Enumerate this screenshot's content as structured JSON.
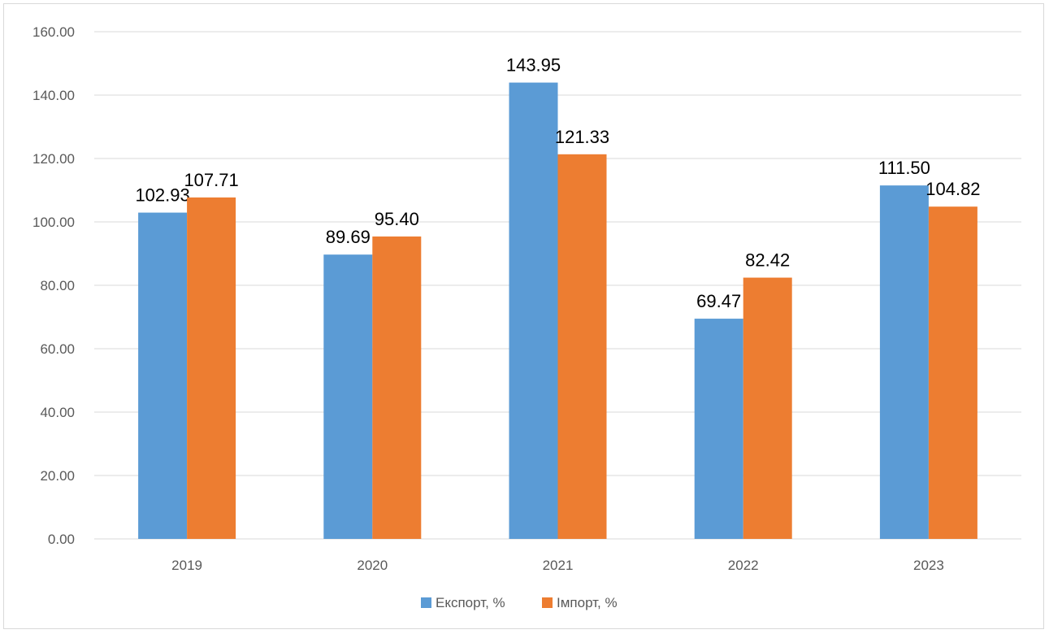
{
  "chart_data": {
    "type": "bar",
    "categories": [
      "2019",
      "2020",
      "2021",
      "2022",
      "2023"
    ],
    "series": [
      {
        "name": "Експорт, %",
        "color": "#5b9bd5",
        "values": [
          102.93,
          89.69,
          143.95,
          69.47,
          111.5
        ],
        "labels": [
          "102.93",
          "89.69",
          "143.95",
          "69.47",
          "111.50"
        ]
      },
      {
        "name": "Імпорт, %",
        "color": "#ed7d31",
        "values": [
          107.71,
          95.4,
          121.33,
          82.42,
          104.82
        ],
        "labels": [
          "107.71",
          "95.40",
          "121.33",
          "82.42",
          "104.82"
        ]
      }
    ],
    "yticks": [
      "0.00",
      "20.00",
      "40.00",
      "60.00",
      "80.00",
      "100.00",
      "120.00",
      "140.00",
      "160.00"
    ],
    "ylim": [
      0,
      160
    ],
    "grid": true,
    "legend_position": "bottom"
  }
}
